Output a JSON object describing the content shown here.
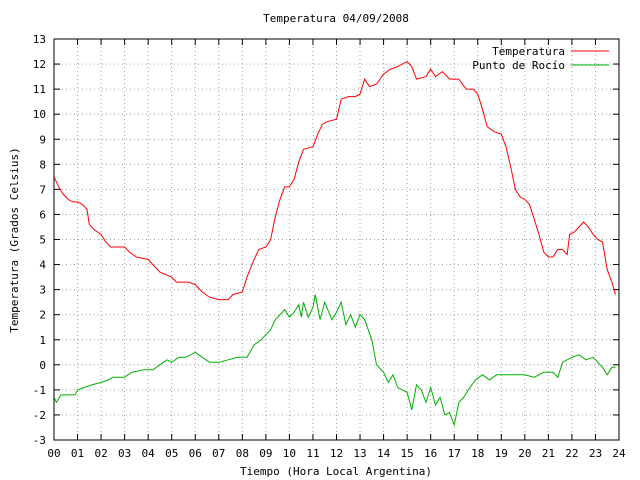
{
  "chart_data": {
    "type": "line",
    "title": "Temperatura 04/09/2008",
    "xlabel": "Tiempo (Hora Local Argentina)",
    "ylabel": "Temperatura (Grados Celsius)",
    "xlim": [
      0,
      24
    ],
    "ylim": [
      -3,
      13
    ],
    "grid": true,
    "legend_position": "top-right",
    "x_ticks": [
      {
        "v": 0,
        "label": "00"
      },
      {
        "v": 1,
        "label": "01"
      },
      {
        "v": 2,
        "label": "02"
      },
      {
        "v": 3,
        "label": "03"
      },
      {
        "v": 4,
        "label": "04"
      },
      {
        "v": 5,
        "label": "05"
      },
      {
        "v": 6,
        "label": "06"
      },
      {
        "v": 7,
        "label": "07"
      },
      {
        "v": 8,
        "label": "08"
      },
      {
        "v": 9,
        "label": "09"
      },
      {
        "v": 10,
        "label": "10"
      },
      {
        "v": 11,
        "label": "11"
      },
      {
        "v": 12,
        "label": "12"
      },
      {
        "v": 13,
        "label": "13"
      },
      {
        "v": 14,
        "label": "14"
      },
      {
        "v": 15,
        "label": "15"
      },
      {
        "v": 16,
        "label": "16"
      },
      {
        "v": 17,
        "label": "17"
      },
      {
        "v": 18,
        "label": "18"
      },
      {
        "v": 19,
        "label": "19"
      },
      {
        "v": 20,
        "label": "20"
      },
      {
        "v": 21,
        "label": "21"
      },
      {
        "v": 22,
        "label": "22"
      },
      {
        "v": 23,
        "label": "23"
      },
      {
        "v": 24,
        "label": "24"
      }
    ],
    "y_ticks": [
      -3,
      -2,
      -1,
      0,
      1,
      2,
      3,
      4,
      5,
      6,
      7,
      8,
      9,
      10,
      11,
      12,
      13
    ],
    "series": [
      {
        "name": "Temperatura",
        "color": "#ff0000",
        "points": [
          [
            0,
            7.5
          ],
          [
            0.2,
            7.1
          ],
          [
            0.4,
            6.8
          ],
          [
            0.6,
            6.6
          ],
          [
            0.8,
            6.5
          ],
          [
            1.0,
            6.5
          ],
          [
            1.2,
            6.4
          ],
          [
            1.4,
            6.2
          ],
          [
            1.5,
            5.6
          ],
          [
            1.7,
            5.4
          ],
          [
            2.0,
            5.2
          ],
          [
            2.2,
            4.9
          ],
          [
            2.4,
            4.7
          ],
          [
            2.7,
            4.7
          ],
          [
            3.0,
            4.7
          ],
          [
            3.2,
            4.5
          ],
          [
            3.5,
            4.3
          ],
          [
            4.0,
            4.2
          ],
          [
            4.2,
            4.0
          ],
          [
            4.5,
            3.7
          ],
          [
            5.0,
            3.5
          ],
          [
            5.2,
            3.3
          ],
          [
            5.7,
            3.3
          ],
          [
            6.0,
            3.2
          ],
          [
            6.3,
            2.9
          ],
          [
            6.6,
            2.7
          ],
          [
            7.0,
            2.6
          ],
          [
            7.4,
            2.6
          ],
          [
            7.6,
            2.8
          ],
          [
            8.0,
            2.9
          ],
          [
            8.2,
            3.5
          ],
          [
            8.5,
            4.2
          ],
          [
            8.7,
            4.6
          ],
          [
            9.0,
            4.7
          ],
          [
            9.2,
            5.0
          ],
          [
            9.4,
            5.9
          ],
          [
            9.6,
            6.6
          ],
          [
            9.8,
            7.1
          ],
          [
            10.0,
            7.1
          ],
          [
            10.2,
            7.4
          ],
          [
            10.4,
            8.1
          ],
          [
            10.6,
            8.6
          ],
          [
            11.0,
            8.7
          ],
          [
            11.2,
            9.2
          ],
          [
            11.4,
            9.6
          ],
          [
            11.6,
            9.7
          ],
          [
            12.0,
            9.8
          ],
          [
            12.2,
            10.6
          ],
          [
            12.5,
            10.7
          ],
          [
            12.8,
            10.7
          ],
          [
            13.0,
            10.8
          ],
          [
            13.2,
            11.4
          ],
          [
            13.4,
            11.1
          ],
          [
            13.7,
            11.2
          ],
          [
            14.0,
            11.6
          ],
          [
            14.3,
            11.8
          ],
          [
            14.6,
            11.9
          ],
          [
            15.0,
            12.1
          ],
          [
            15.2,
            11.9
          ],
          [
            15.4,
            11.4
          ],
          [
            15.8,
            11.5
          ],
          [
            16.0,
            11.8
          ],
          [
            16.2,
            11.5
          ],
          [
            16.5,
            11.7
          ],
          [
            16.8,
            11.4
          ],
          [
            17.2,
            11.4
          ],
          [
            17.5,
            11.0
          ],
          [
            17.8,
            11.0
          ],
          [
            18.0,
            10.8
          ],
          [
            18.2,
            10.2
          ],
          [
            18.4,
            9.5
          ],
          [
            18.7,
            9.3
          ],
          [
            19.0,
            9.2
          ],
          [
            19.2,
            8.7
          ],
          [
            19.4,
            7.9
          ],
          [
            19.6,
            7.0
          ],
          [
            19.8,
            6.7
          ],
          [
            20.0,
            6.6
          ],
          [
            20.2,
            6.4
          ],
          [
            20.4,
            5.8
          ],
          [
            20.6,
            5.2
          ],
          [
            20.8,
            4.5
          ],
          [
            21.0,
            4.3
          ],
          [
            21.2,
            4.3
          ],
          [
            21.4,
            4.6
          ],
          [
            21.6,
            4.6
          ],
          [
            21.8,
            4.4
          ],
          [
            21.9,
            5.2
          ],
          [
            22.1,
            5.3
          ],
          [
            22.3,
            5.5
          ],
          [
            22.5,
            5.7
          ],
          [
            22.7,
            5.5
          ],
          [
            22.9,
            5.2
          ],
          [
            23.1,
            5.0
          ],
          [
            23.3,
            4.9
          ],
          [
            23.5,
            3.8
          ],
          [
            23.7,
            3.3
          ],
          [
            23.85,
            2.8
          ]
        ]
      },
      {
        "name": "Punto de Rocío",
        "color": "#00b000",
        "points": [
          [
            0,
            -1.3
          ],
          [
            0.1,
            -1.5
          ],
          [
            0.3,
            -1.2
          ],
          [
            0.6,
            -1.2
          ],
          [
            0.9,
            -1.2
          ],
          [
            1.0,
            -1.0
          ],
          [
            1.3,
            -0.9
          ],
          [
            1.6,
            -0.8
          ],
          [
            2.0,
            -0.7
          ],
          [
            2.3,
            -0.6
          ],
          [
            2.5,
            -0.5
          ],
          [
            3.0,
            -0.5
          ],
          [
            3.3,
            -0.3
          ],
          [
            3.8,
            -0.2
          ],
          [
            4.2,
            -0.2
          ],
          [
            4.5,
            0.0
          ],
          [
            4.8,
            0.2
          ],
          [
            5.0,
            0.1
          ],
          [
            5.3,
            0.3
          ],
          [
            5.6,
            0.3
          ],
          [
            6.0,
            0.5
          ],
          [
            6.3,
            0.3
          ],
          [
            6.6,
            0.1
          ],
          [
            7.0,
            0.1
          ],
          [
            7.4,
            0.2
          ],
          [
            7.8,
            0.3
          ],
          [
            8.2,
            0.3
          ],
          [
            8.5,
            0.8
          ],
          [
            8.8,
            1.0
          ],
          [
            9.0,
            1.2
          ],
          [
            9.2,
            1.4
          ],
          [
            9.4,
            1.8
          ],
          [
            9.6,
            2.0
          ],
          [
            9.8,
            2.2
          ],
          [
            10.0,
            1.9
          ],
          [
            10.2,
            2.1
          ],
          [
            10.4,
            2.4
          ],
          [
            10.5,
            1.9
          ],
          [
            10.6,
            2.5
          ],
          [
            10.8,
            1.9
          ],
          [
            11.0,
            2.3
          ],
          [
            11.1,
            2.8
          ],
          [
            11.3,
            1.8
          ],
          [
            11.5,
            2.5
          ],
          [
            11.8,
            1.8
          ],
          [
            12.0,
            2.1
          ],
          [
            12.2,
            2.5
          ],
          [
            12.4,
            1.6
          ],
          [
            12.6,
            2.0
          ],
          [
            12.8,
            1.5
          ],
          [
            13.0,
            2.0
          ],
          [
            13.2,
            1.8
          ],
          [
            13.5,
            1.0
          ],
          [
            13.7,
            0.0
          ],
          [
            14.0,
            -0.3
          ],
          [
            14.2,
            -0.7
          ],
          [
            14.4,
            -0.4
          ],
          [
            14.6,
            -0.9
          ],
          [
            15.0,
            -1.1
          ],
          [
            15.2,
            -1.8
          ],
          [
            15.4,
            -0.8
          ],
          [
            15.6,
            -1.0
          ],
          [
            15.8,
            -1.5
          ],
          [
            16.0,
            -0.9
          ],
          [
            16.2,
            -1.6
          ],
          [
            16.4,
            -1.3
          ],
          [
            16.6,
            -2.0
          ],
          [
            16.8,
            -1.9
          ],
          [
            17.0,
            -2.4
          ],
          [
            17.2,
            -1.5
          ],
          [
            17.4,
            -1.3
          ],
          [
            17.6,
            -1.0
          ],
          [
            17.9,
            -0.6
          ],
          [
            18.2,
            -0.4
          ],
          [
            18.5,
            -0.6
          ],
          [
            18.8,
            -0.4
          ],
          [
            19.2,
            -0.4
          ],
          [
            19.6,
            -0.4
          ],
          [
            20.0,
            -0.4
          ],
          [
            20.4,
            -0.5
          ],
          [
            20.8,
            -0.3
          ],
          [
            21.2,
            -0.3
          ],
          [
            21.4,
            -0.5
          ],
          [
            21.6,
            0.1
          ],
          [
            21.8,
            0.2
          ],
          [
            22.0,
            0.3
          ],
          [
            22.3,
            0.4
          ],
          [
            22.6,
            0.2
          ],
          [
            22.9,
            0.3
          ],
          [
            23.1,
            0.1
          ],
          [
            23.3,
            -0.1
          ],
          [
            23.5,
            -0.4
          ],
          [
            23.7,
            -0.1
          ],
          [
            23.85,
            -0.1
          ]
        ]
      }
    ]
  }
}
